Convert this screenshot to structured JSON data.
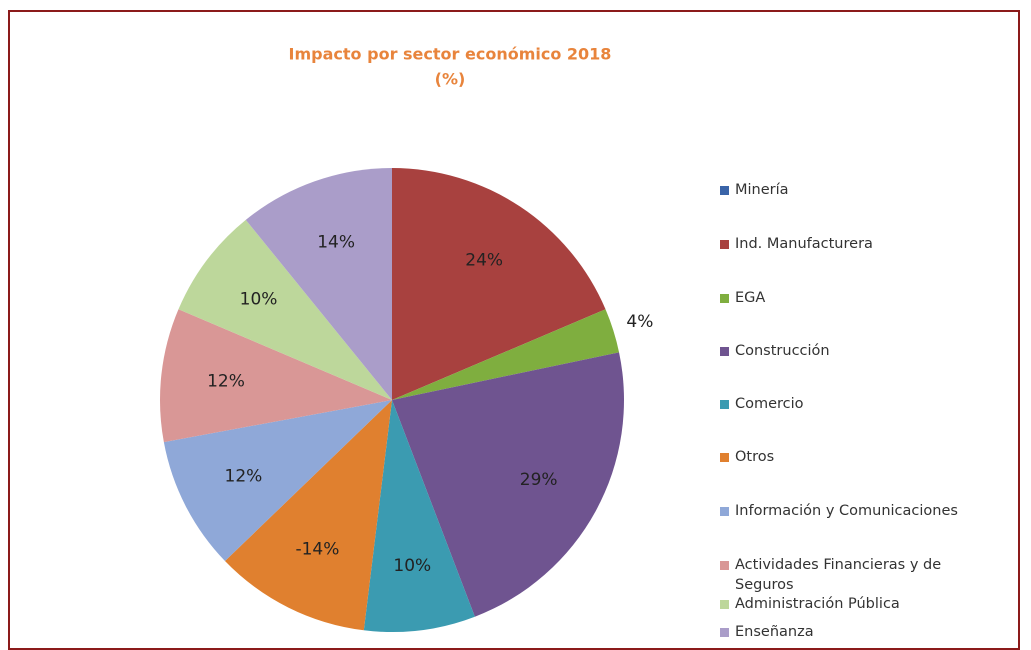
{
  "chart_data": {
    "type": "pie",
    "title": "Impacto por sector económico 2018",
    "subtitle": "(%)",
    "categories": [
      "Minería",
      "Ind. Manufacturera",
      "EGA",
      "Construcción",
      "Comercio",
      "Otros",
      "Información y Comunicaciones",
      "Actividades Financieras y de Seguros",
      "Administración Pública",
      "Enseñanza"
    ],
    "values": [
      null,
      24,
      4,
      29,
      10,
      -14,
      12,
      12,
      10,
      14
    ],
    "value_labels": [
      null,
      "24%",
      "4%",
      "29%",
      "10%",
      "-14%",
      "12%",
      "12%",
      "10%",
      "14%"
    ],
    "colors": [
      "#3a64a8",
      "#a8413f",
      "#7fae3f",
      "#6f5490",
      "#3b9bb1",
      "#e0802f",
      "#8fa8d8",
      "#d99796",
      "#bdd79b",
      "#aa9dc9"
    ],
    "legend": "right"
  }
}
